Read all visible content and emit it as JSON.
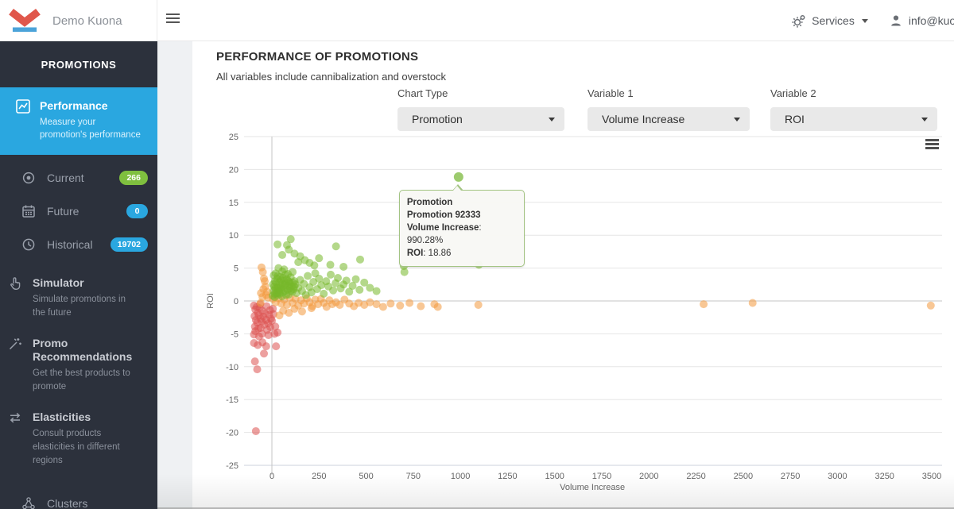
{
  "topbar": {
    "brand": "Demo Kuona",
    "services_label": "Services",
    "user_email": "info@kuon"
  },
  "sidebar": {
    "section_title": "PROMOTIONS",
    "performance": {
      "title": "Performance",
      "description": "Measure your promotion's performance"
    },
    "sub_items": [
      {
        "label": "Current",
        "badge": "266",
        "badge_color": "#7fbf3f",
        "icon": "circle-dot-icon"
      },
      {
        "label": "Future",
        "badge": "0",
        "badge_color": "#2aa7e0",
        "icon": "calendar-icon"
      },
      {
        "label": "Historical",
        "badge": "19702",
        "badge_color": "#2aa7e0",
        "icon": "clock-icon"
      }
    ],
    "items": [
      {
        "title": "Simulator",
        "description": "Simulate promotions in the future",
        "icon": "hand-pointer-icon"
      },
      {
        "title": "Promo Recommendations",
        "description": "Get the best products to promote",
        "icon": "magic-wand-icon"
      },
      {
        "title": "Elasticities",
        "description": "Consult products elasticities in different regions",
        "icon": "swap-arrows-icon"
      }
    ],
    "clusters_label": "Clusters"
  },
  "main": {
    "title": "PERFORMANCE OF PROMOTIONS",
    "subtitle": "All variables include cannibalization and overstock",
    "controls": [
      {
        "label": "Chart Type",
        "value": "Promotion"
      },
      {
        "label": "Variable 1",
        "value": "Volume Increase"
      },
      {
        "label": "Variable 2",
        "value": "ROI"
      }
    ]
  },
  "chart_data": {
    "type": "scatter",
    "title": "",
    "xlabel": "Volume Increase",
    "ylabel": "ROI",
    "xlim": [
      -150,
      3560
    ],
    "ylim": [
      -25,
      25
    ],
    "x_ticks": [
      0,
      250,
      500,
      750,
      1000,
      1250,
      1500,
      1750,
      2000,
      2250,
      2500,
      2750,
      3000,
      3250,
      3500
    ],
    "y_ticks": [
      25,
      20,
      15,
      10,
      5,
      0,
      -5,
      -10,
      -15,
      -20,
      -25
    ],
    "grid": true,
    "legend": "none",
    "point_opacity": 0.55,
    "series": [
      {
        "name": "negative-roi",
        "color": "#dd5250",
        "points": [
          [
            -95,
            -0.7
          ],
          [
            -88,
            -1.3
          ],
          [
            -80,
            -0.9
          ],
          [
            -75,
            -1.8
          ],
          [
            -92,
            -2.3
          ],
          [
            -85,
            -2.9
          ],
          [
            -78,
            -3.3
          ],
          [
            -90,
            -3.9
          ],
          [
            -70,
            -2.2
          ],
          [
            -65,
            -1.1
          ],
          [
            -60,
            -2.7
          ],
          [
            -55,
            -3.1
          ],
          [
            -72,
            -4.2
          ],
          [
            -88,
            -4.6
          ],
          [
            -60,
            -4.1
          ],
          [
            -50,
            -1.5
          ],
          [
            -45,
            -2.4
          ],
          [
            -40,
            -3.6
          ],
          [
            -35,
            -1.9
          ],
          [
            -30,
            -2.9
          ],
          [
            -52,
            -5.0
          ],
          [
            -68,
            -5.4
          ],
          [
            -95,
            -5.1
          ],
          [
            -25,
            -4.4
          ],
          [
            -20,
            -3.4
          ],
          [
            -15,
            -2.1
          ],
          [
            -10,
            -1.4
          ],
          [
            -5,
            -2.7
          ],
          [
            -18,
            -5.2
          ],
          [
            -8,
            -4.0
          ],
          [
            0,
            -3.0
          ],
          [
            8,
            -2.0
          ],
          [
            18,
            -3.9
          ],
          [
            14,
            -5.0
          ],
          [
            -95,
            -6.4
          ],
          [
            -75,
            -6.7
          ],
          [
            -50,
            -6.3
          ],
          [
            -30,
            -6.9
          ],
          [
            -90,
            -9.2
          ],
          [
            -78,
            -10.4
          ],
          [
            -42,
            -8.0
          ],
          [
            -85,
            -19.8
          ],
          [
            22,
            -6.9
          ],
          [
            30,
            -4.8
          ],
          [
            -62,
            -0.5
          ],
          [
            -28,
            -0.8
          ],
          [
            5,
            -1.2
          ]
        ]
      },
      {
        "name": "near-zero-roi",
        "color": "#f2993e",
        "points": [
          [
            -55,
            5.1
          ],
          [
            -48,
            4.4
          ],
          [
            -42,
            3.4
          ],
          [
            -38,
            3.0
          ],
          [
            -58,
            1.2
          ],
          [
            -50,
            0.6
          ],
          [
            -45,
            1.8
          ],
          [
            -30,
            0.9
          ],
          [
            -25,
            1.4
          ],
          [
            -20,
            0.5
          ],
          [
            -60,
            -0.3
          ],
          [
            -35,
            2.2
          ],
          [
            5,
            0.3
          ],
          [
            20,
            -0.2
          ],
          [
            35,
            0.4
          ],
          [
            50,
            -0.4
          ],
          [
            65,
            0.2
          ],
          [
            80,
            -0.6
          ],
          [
            95,
            0.5
          ],
          [
            110,
            -0.3
          ],
          [
            125,
            0.3
          ],
          [
            140,
            -0.7
          ],
          [
            155,
            0.1
          ],
          [
            170,
            -0.4
          ],
          [
            185,
            0.4
          ],
          [
            200,
            -0.2
          ],
          [
            215,
            -0.8
          ],
          [
            230,
            0.2
          ],
          [
            245,
            -0.5
          ],
          [
            260,
            0.3
          ],
          [
            275,
            -0.3
          ],
          [
            290,
            -0.9
          ],
          [
            305,
            0.1
          ],
          [
            320,
            -0.5
          ],
          [
            340,
            -0.2
          ],
          [
            360,
            -0.6
          ],
          [
            385,
            0.2
          ],
          [
            410,
            -0.4
          ],
          [
            435,
            -0.8
          ],
          [
            460,
            -0.3
          ],
          [
            490,
            -0.6
          ],
          [
            520,
            -0.2
          ],
          [
            555,
            -0.5
          ],
          [
            590,
            -0.9
          ],
          [
            630,
            -0.4
          ],
          [
            680,
            -0.7
          ],
          [
            730,
            -0.3
          ],
          [
            790,
            -0.8
          ],
          [
            862,
            -0.5
          ],
          [
            880,
            -0.9
          ],
          [
            1095,
            -0.6
          ],
          [
            2290,
            -0.5
          ],
          [
            2550,
            -0.3
          ],
          [
            3495,
            -0.7
          ],
          [
            60,
            -1.5
          ],
          [
            90,
            -1.8
          ],
          [
            120,
            -1.2
          ],
          [
            160,
            -1.6
          ],
          [
            40,
            -2.2
          ],
          [
            210,
            -1.1
          ],
          [
            18,
            1.0
          ],
          [
            28,
            1.6
          ]
        ]
      },
      {
        "name": "positive-roi",
        "color": "#76b82a",
        "points": [
          [
            4,
            0.8
          ],
          [
            8,
            1.5
          ],
          [
            12,
            2.2
          ],
          [
            15,
            0.6
          ],
          [
            18,
            1.9
          ],
          [
            22,
            2.8
          ],
          [
            25,
            1.2
          ],
          [
            28,
            3.4
          ],
          [
            30,
            0.9
          ],
          [
            33,
            2.1
          ],
          [
            36,
            1.6
          ],
          [
            40,
            2.9
          ],
          [
            42,
            1.1
          ],
          [
            45,
            3.7
          ],
          [
            48,
            2.4
          ],
          [
            50,
            1.8
          ],
          [
            53,
            0.7
          ],
          [
            56,
            2.6
          ],
          [
            60,
            1.3
          ],
          [
            63,
            3.1
          ],
          [
            66,
            2.0
          ],
          [
            70,
            1.5
          ],
          [
            73,
            2.7
          ],
          [
            76,
            0.9
          ],
          [
            80,
            3.3
          ],
          [
            83,
            1.7
          ],
          [
            86,
            2.3
          ],
          [
            90,
            1.0
          ],
          [
            93,
            2.9
          ],
          [
            96,
            1.9
          ],
          [
            100,
            3.6
          ],
          [
            104,
            2.2
          ],
          [
            108,
            1.4
          ],
          [
            112,
            2.8
          ],
          [
            116,
            1.8
          ],
          [
            120,
            3.0
          ],
          [
            125,
            2.5
          ],
          [
            130,
            1.2
          ],
          [
            20,
            4.2
          ],
          [
            55,
            4.5
          ],
          [
            85,
            4.1
          ],
          [
            110,
            4.4
          ],
          [
            35,
            5.0
          ],
          [
            65,
            4.8
          ],
          [
            10,
            3.9
          ],
          [
            16,
            3.0
          ],
          [
            44,
            2.0
          ],
          [
            58,
            3.5
          ],
          [
            72,
            4.0
          ],
          [
            95,
            2.6
          ],
          [
            6,
            2.5
          ],
          [
            26,
            2.0
          ],
          [
            38,
            1.3
          ],
          [
            68,
            2.4
          ],
          [
            88,
            3.0
          ],
          [
            102,
            1.6
          ],
          [
            118,
            2.2
          ],
          [
            14,
            1.1
          ],
          [
            47,
            3.2
          ],
          [
            31,
            3.8
          ],
          [
            140,
            2.0
          ],
          [
            150,
            3.2
          ],
          [
            160,
            1.5
          ],
          [
            170,
            2.6
          ],
          [
            180,
            0.9
          ],
          [
            190,
            3.8
          ],
          [
            200,
            2.1
          ],
          [
            210,
            1.3
          ],
          [
            220,
            2.9
          ],
          [
            230,
            4.2
          ],
          [
            240,
            1.8
          ],
          [
            250,
            3.4
          ],
          [
            262,
            2.4
          ],
          [
            275,
            1.1
          ],
          [
            288,
            3.0
          ],
          [
            300,
            2.2
          ],
          [
            312,
            4.0
          ],
          [
            325,
            1.6
          ],
          [
            338,
            2.7
          ],
          [
            350,
            3.5
          ],
          [
            365,
            1.9
          ],
          [
            380,
            2.5
          ],
          [
            395,
            3.1
          ],
          [
            410,
            1.4
          ],
          [
            428,
            2.3
          ],
          [
            445,
            3.3
          ],
          [
            465,
            1.7
          ],
          [
            490,
            2.8
          ],
          [
            520,
            2.0
          ],
          [
            555,
            1.5
          ],
          [
            30,
            8.6
          ],
          [
            100,
            9.4
          ],
          [
            80,
            8.5
          ],
          [
            90,
            7.8
          ],
          [
            340,
            8.3
          ],
          [
            120,
            7.2
          ],
          [
            150,
            6.8
          ],
          [
            200,
            5.8
          ],
          [
            250,
            6.5
          ],
          [
            468,
            6.3
          ],
          [
            310,
            5.5
          ],
          [
            700,
            5.3
          ],
          [
            703,
            4.4
          ],
          [
            1098,
            5.5
          ],
          [
            380,
            5.2
          ],
          [
            55,
            7.0
          ],
          [
            140,
            5.9
          ],
          [
            175,
            6.2
          ],
          [
            225,
            5.4
          ]
        ]
      }
    ],
    "highlight_point": {
      "x": 990.28,
      "y": 18.86,
      "color": "#8cc255"
    },
    "tooltip": {
      "header": "Promotion",
      "name": "Promotion 92333",
      "row1_label": "Volume Increase",
      "row1_value": ": 990.28%",
      "row2_label": "ROI",
      "row2_value": ": 18.86"
    }
  }
}
